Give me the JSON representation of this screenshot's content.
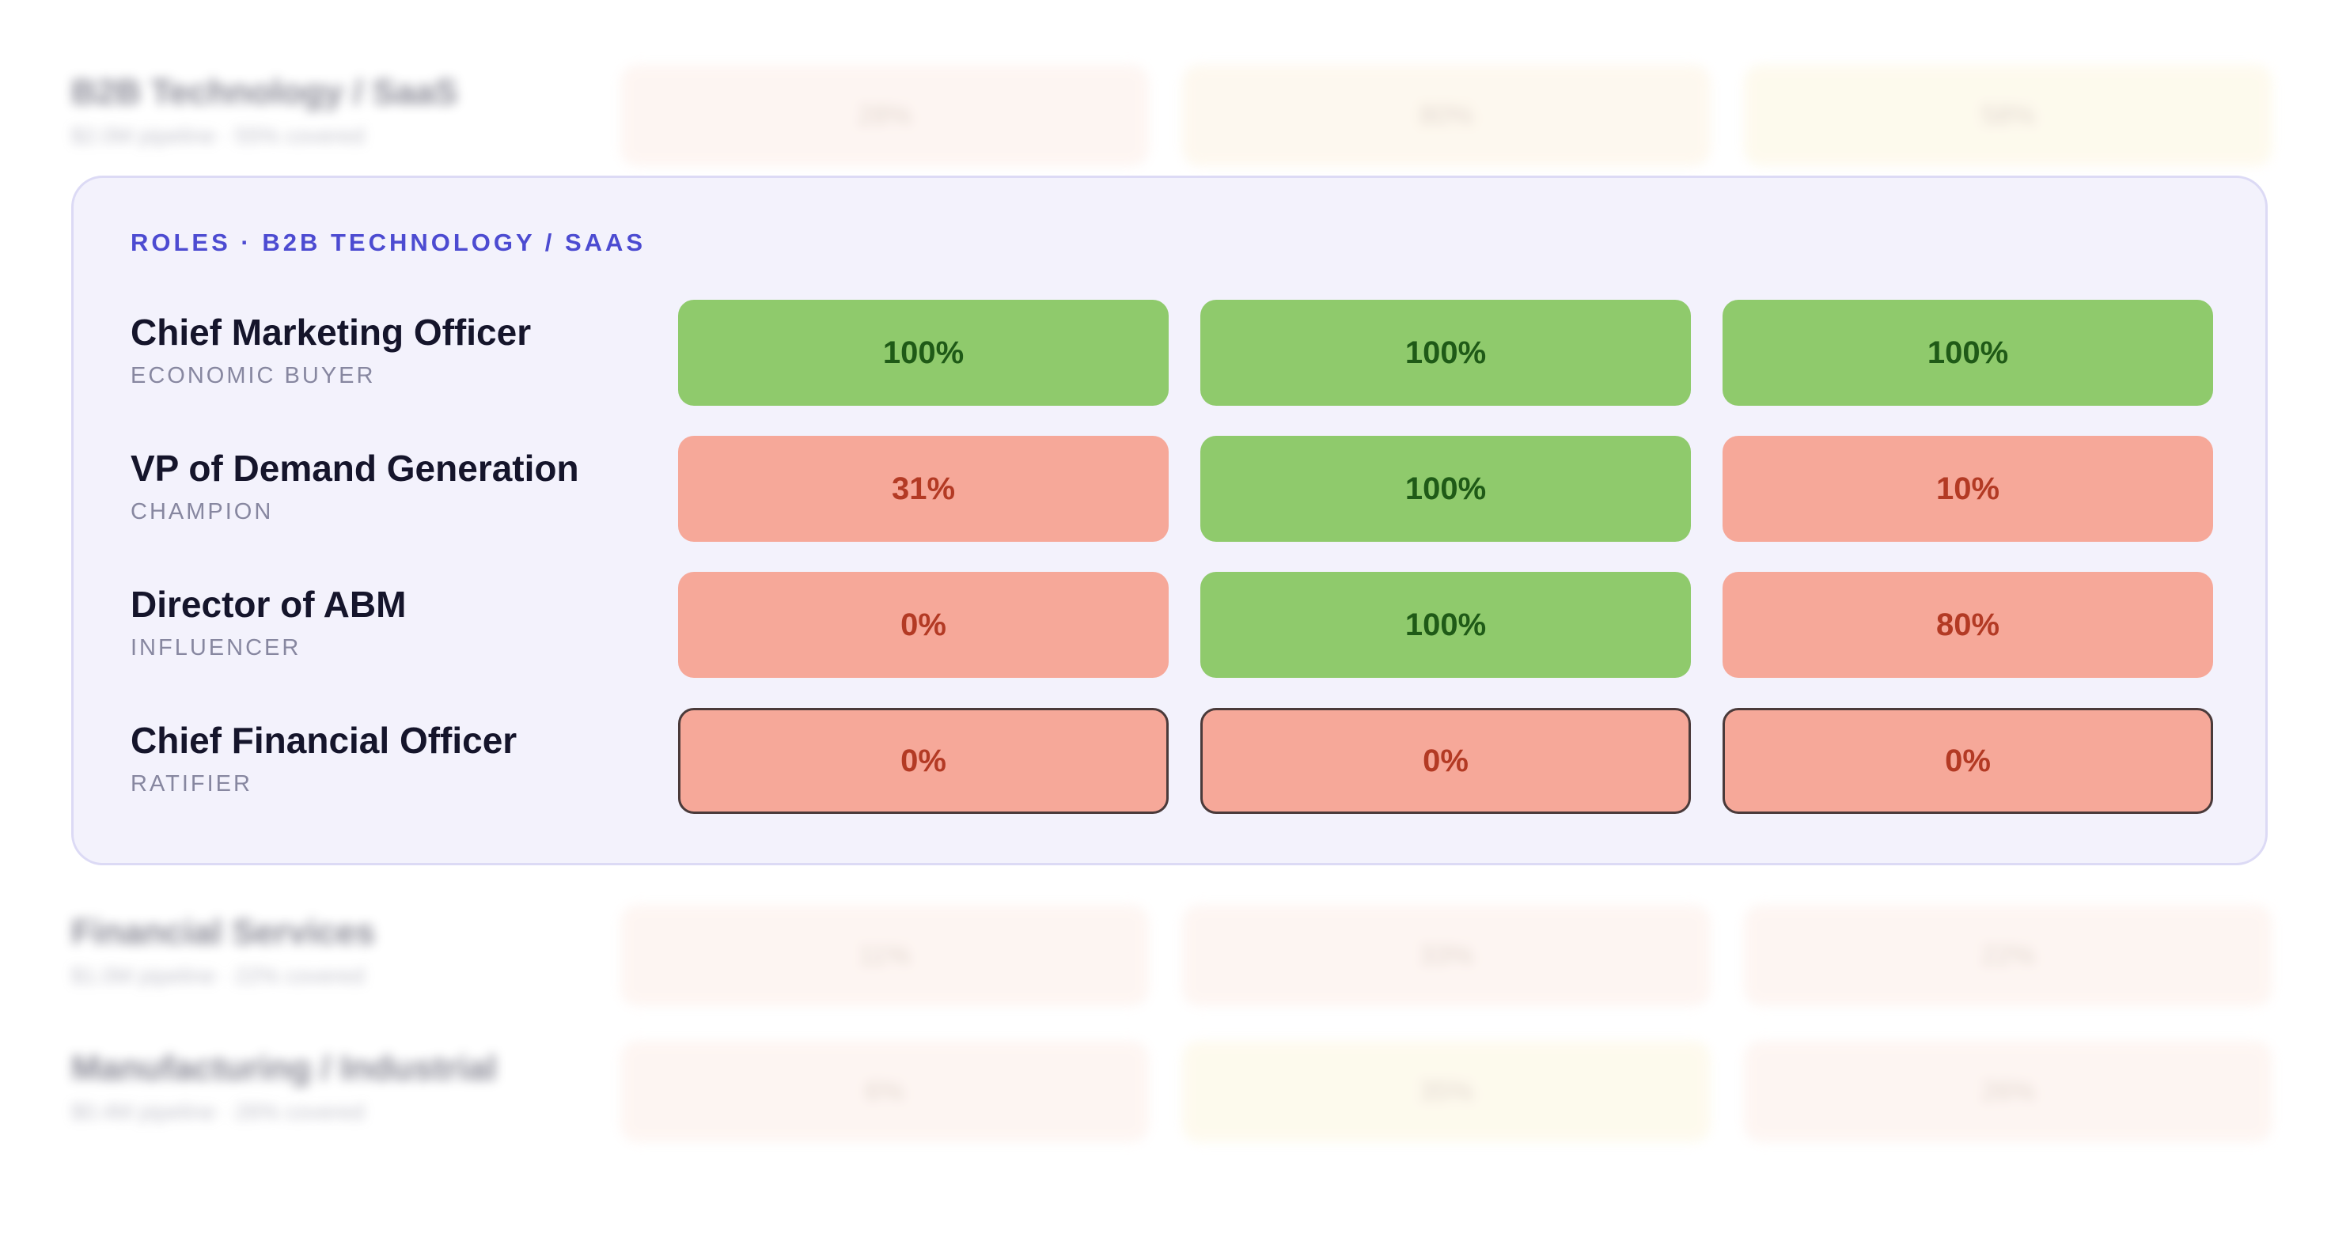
{
  "segments_above": [
    {
      "title": "B2B Technology / SaaS",
      "subtitle": "$2.0M pipeline · 55% covered",
      "cells": [
        {
          "value": "28%",
          "tone": "red"
        },
        {
          "value": "80%",
          "tone": "amber"
        },
        {
          "value": "58%",
          "tone": "yellow"
        }
      ]
    }
  ],
  "roles_panel": {
    "heading": "ROLES · B2B TECHNOLOGY / SAAS",
    "roles": [
      {
        "name": "Chief Marketing Officer",
        "type": "ECONOMIC BUYER",
        "cells": [
          {
            "value": "100%",
            "status": "good",
            "outlined": false
          },
          {
            "value": "100%",
            "status": "good",
            "outlined": false
          },
          {
            "value": "100%",
            "status": "good",
            "outlined": false
          }
        ]
      },
      {
        "name": "VP of Demand Generation",
        "type": "CHAMPION",
        "cells": [
          {
            "value": "31%",
            "status": "bad",
            "outlined": false
          },
          {
            "value": "100%",
            "status": "good",
            "outlined": false
          },
          {
            "value": "10%",
            "status": "bad",
            "outlined": false
          }
        ]
      },
      {
        "name": "Director of ABM",
        "type": "INFLUENCER",
        "cells": [
          {
            "value": "0%",
            "status": "bad",
            "outlined": false
          },
          {
            "value": "100%",
            "status": "good",
            "outlined": false
          },
          {
            "value": "80%",
            "status": "bad",
            "outlined": false
          }
        ]
      },
      {
        "name": "Chief Financial Officer",
        "type": "RATIFIER",
        "cells": [
          {
            "value": "0%",
            "status": "bad",
            "outlined": true
          },
          {
            "value": "0%",
            "status": "bad",
            "outlined": true
          },
          {
            "value": "0%",
            "status": "bad",
            "outlined": true
          }
        ]
      }
    ]
  },
  "segments_below": [
    {
      "title": "Financial Services",
      "subtitle": "$1.0M pipeline · 22% covered",
      "cells": [
        {
          "value": "11%",
          "tone": "red"
        },
        {
          "value": "33%",
          "tone": "red"
        },
        {
          "value": "22%",
          "tone": "red"
        }
      ]
    },
    {
      "title": "Manufacturing / Industrial",
      "subtitle": "$0.4M pipeline · 26% covered",
      "cells": [
        {
          "value": "6%",
          "tone": "red"
        },
        {
          "value": "35%",
          "tone": "yellow"
        },
        {
          "value": "26%",
          "tone": "red"
        }
      ]
    }
  ],
  "colors": {
    "good_fill": "#8fca6c",
    "good_text": "#1f5a17",
    "bad_fill": "#f6a899",
    "bad_text": "#b33a24",
    "panel_bg": "#f3f2fc",
    "heading_accent": "#4c4bd1"
  }
}
